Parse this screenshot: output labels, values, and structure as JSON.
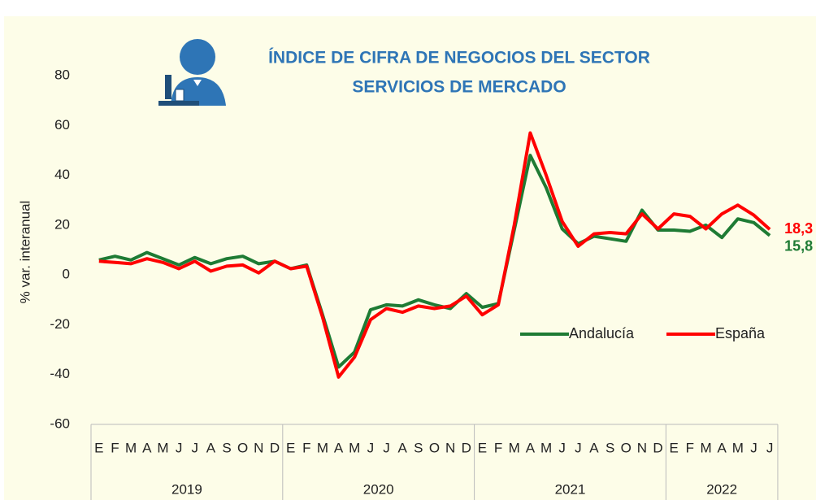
{
  "chart_data": {
    "type": "line",
    "title_lines": [
      "ÍNDICE DE CIFRA DE NEGOCIOS DEL SECTOR",
      "SERVICIOS DE MERCADO"
    ],
    "y_label": "% var. interanual",
    "groups": [
      {
        "label": "2019",
        "categories": [
          "E",
          "F",
          "M",
          "A",
          "M",
          "J",
          "J",
          "A",
          "S",
          "O",
          "N",
          "D"
        ]
      },
      {
        "label": "2020",
        "categories": [
          "E",
          "F",
          "M",
          "A",
          "M",
          "J",
          "J",
          "A",
          "S",
          "O",
          "N",
          "D"
        ]
      },
      {
        "label": "2021",
        "categories": [
          "E",
          "F",
          "M",
          "A",
          "M",
          "J",
          "J",
          "A",
          "S",
          "O",
          "N",
          "D"
        ]
      },
      {
        "label": "2022",
        "categories": [
          "E",
          "F",
          "M",
          "A",
          "M",
          "J",
          "J"
        ]
      }
    ],
    "series": [
      {
        "name": "Andalucía",
        "color": "#1e7b34",
        "values": [
          6,
          7.5,
          6,
          9,
          6.5,
          4,
          7,
          4.5,
          6.5,
          7.5,
          4.5,
          5.5,
          2.5,
          4,
          -16,
          -37,
          -31,
          -14,
          -12,
          -12.5,
          -10,
          -12,
          -13.5,
          -7.5,
          -13,
          -11.5,
          18,
          48,
          35,
          18.5,
          12.5,
          15.5,
          14.5,
          13.5,
          26,
          18,
          18,
          17.5,
          20,
          15,
          22.5,
          21,
          15.8
        ],
        "value_labels": [
          null,
          null,
          null,
          null,
          null,
          null,
          null,
          null,
          null,
          null,
          null,
          null,
          null,
          null,
          null,
          null,
          null,
          null,
          null,
          null,
          null,
          null,
          null,
          null,
          null,
          null,
          null,
          null,
          null,
          null,
          null,
          null,
          null,
          null,
          null,
          null,
          null,
          null,
          null,
          null,
          null,
          null,
          "15,8"
        ]
      },
      {
        "name": "España",
        "color": "#ff0000",
        "values": [
          5.5,
          5,
          4.5,
          6.5,
          5,
          2.5,
          5.5,
          1.5,
          3.5,
          4,
          0.8,
          5.5,
          2.5,
          3.5,
          -17,
          -41,
          -33,
          -18,
          -13.5,
          -15,
          -12.5,
          -13.5,
          -12.5,
          -8.5,
          -16,
          -12,
          20,
          57,
          40,
          21.5,
          11.5,
          16.5,
          17,
          16.5,
          24.5,
          18.5,
          24.5,
          23.5,
          18.5,
          24.5,
          28,
          24,
          18.3
        ],
        "value_labels": [
          null,
          null,
          null,
          null,
          null,
          null,
          null,
          null,
          null,
          null,
          null,
          null,
          null,
          null,
          null,
          null,
          null,
          null,
          null,
          null,
          null,
          null,
          null,
          null,
          null,
          null,
          null,
          null,
          null,
          null,
          null,
          null,
          null,
          null,
          null,
          null,
          null,
          null,
          null,
          null,
          null,
          null,
          "18,3"
        ]
      }
    ],
    "ylim": [
      -60,
      80
    ],
    "yticks": [
      -60,
      -40,
      -20,
      0,
      20,
      40,
      60,
      80
    ],
    "grid": false
  }
}
